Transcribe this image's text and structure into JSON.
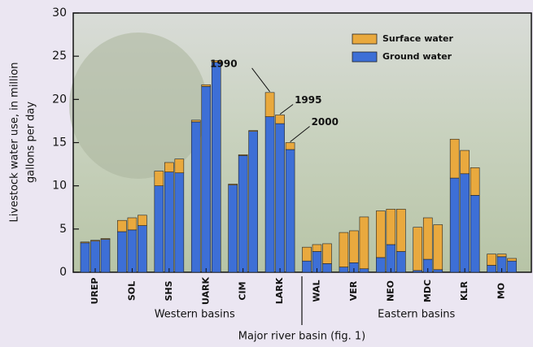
{
  "chart_data": {
    "type": "bar",
    "stacked": true,
    "ylabel": [
      "Livestock water use, in million",
      "gallons per day"
    ],
    "xlabel": "Major river basin (fig. 1)",
    "regions": [
      "Western basins",
      "Eastern basins"
    ],
    "annotations": [
      "1990",
      "1995",
      "2000"
    ],
    "categories": [
      "UREP",
      "SOL",
      "SHS",
      "UARK",
      "CIM",
      "LARK",
      "WAL",
      "VER",
      "NEO",
      "MDC",
      "KLR",
      "MO"
    ],
    "series": [
      {
        "name": "Ground water",
        "color": "#3d6fd6",
        "values": [
          [
            3.4,
            3.6,
            3.8
          ],
          [
            4.7,
            4.9,
            5.4
          ],
          [
            10.0,
            11.6,
            11.5
          ],
          [
            17.4,
            21.5,
            24.3
          ],
          [
            10.1,
            13.5,
            16.3
          ],
          [
            18.0,
            17.2,
            14.2
          ],
          [
            1.3,
            2.4,
            1.0
          ],
          [
            0.6,
            1.1,
            0.4
          ],
          [
            1.7,
            3.2,
            2.4
          ],
          [
            0.2,
            1.5,
            0.3
          ],
          [
            10.9,
            11.4,
            8.9
          ],
          [
            0.8,
            1.8,
            1.3
          ]
        ]
      },
      {
        "name": "Surface water",
        "color": "#e9a93e",
        "values": [
          [
            0.1,
            0.1,
            0.1
          ],
          [
            1.3,
            1.4,
            1.2
          ],
          [
            1.7,
            1.1,
            1.6
          ],
          [
            0.2,
            0.2,
            0.2
          ],
          [
            0.1,
            0.1,
            0.1
          ],
          [
            2.8,
            1.0,
            0.8
          ],
          [
            1.6,
            0.8,
            2.3
          ],
          [
            4.0,
            3.7,
            6.0
          ],
          [
            5.4,
            4.1,
            4.9
          ],
          [
            5.0,
            4.8,
            5.2
          ],
          [
            4.5,
            2.7,
            3.2
          ],
          [
            1.3,
            0.3,
            0.3
          ]
        ]
      }
    ],
    "ylim": [
      0,
      30
    ],
    "yticks": [
      0,
      5,
      10,
      15,
      20,
      25,
      30
    ]
  }
}
